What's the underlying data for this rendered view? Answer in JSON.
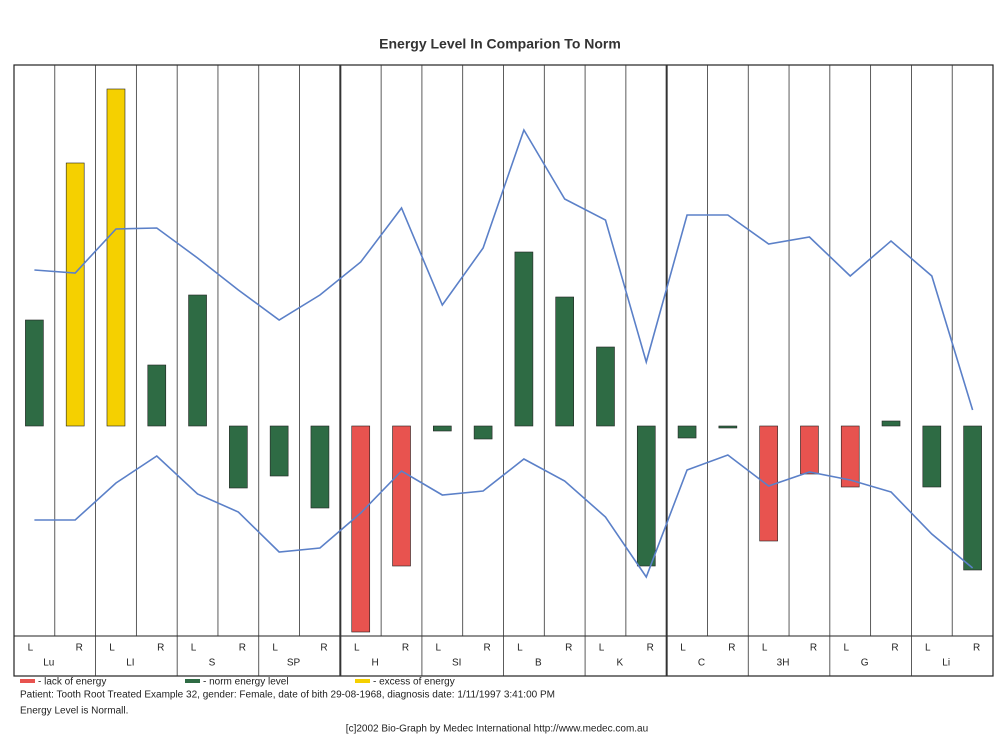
{
  "chart_data": {
    "type": "bar",
    "title": "Energy Level In Comparion To Norm",
    "categories": [
      "L",
      "R",
      "L",
      "R",
      "L",
      "R",
      "L",
      "R",
      "L",
      "R",
      "L",
      "R",
      "L",
      "R",
      "L",
      "R",
      "L",
      "R",
      "L",
      "R",
      "L",
      "R",
      "L",
      "R"
    ],
    "groups": [
      "Lu",
      "LI",
      "S",
      "SP",
      "H",
      "SI",
      "B",
      "K",
      "C",
      "3H",
      "G",
      "Li"
    ],
    "values": [
      106,
      263,
      337,
      61,
      131,
      -62,
      -50,
      -82,
      -206,
      -140,
      -5,
      -13,
      174,
      129,
      79,
      -140,
      -12,
      -2,
      -115,
      -48,
      -61,
      5,
      -61,
      -144
    ],
    "bar_colors": [
      "#2e6b44",
      "#f5d000",
      "#f5d000",
      "#2e6b44",
      "#2e6b44",
      "#2e6b44",
      "#2e6b44",
      "#2e6b44",
      "#e8534f",
      "#e8534f",
      "#2e6b44",
      "#2e6b44",
      "#2e6b44",
      "#2e6b44",
      "#2e6b44",
      "#2e6b44",
      "#2e6b44",
      "#2e6b44",
      "#e8534f",
      "#e8534f",
      "#e8534f",
      "#2e6b44",
      "#2e6b44",
      "#2e6b44"
    ],
    "lines": [
      {
        "color": "#5b80c8",
        "values": [
          156,
          153,
          197,
          198,
          168,
          136,
          106,
          131,
          164,
          218,
          121,
          178,
          296,
          227,
          206,
          64,
          211,
          211,
          182,
          189,
          150,
          185,
          150,
          16
        ]
      },
      {
        "color": "#5b80c8",
        "values": [
          -94,
          -94,
          -57,
          -30,
          -68,
          -86,
          -126,
          -122,
          -87,
          -45,
          -69,
          -65,
          -33,
          -55,
          -91,
          -151,
          -44,
          -29,
          -60,
          -46,
          -54,
          -66,
          -108,
          -142
        ]
      }
    ],
    "ylim": [
      -210,
      361
    ],
    "legend": [
      {
        "label": "- lack of energy",
        "color": "#e8534f"
      },
      {
        "label": "- norm energy level",
        "color": "#2e6b44"
      },
      {
        "label": "- excess of energy",
        "color": "#f5d000"
      }
    ],
    "patient": "Patient: Tooth Root Treated Example 32, gender: Female, date of bith 29-08-1968, diagnosis date: 1/11/1997 3:41:00 PM",
    "summary": "Energy Level is Normall.",
    "footer": "[c]2002 Bio-Graph by Medec International http://www.medec.com.au"
  }
}
